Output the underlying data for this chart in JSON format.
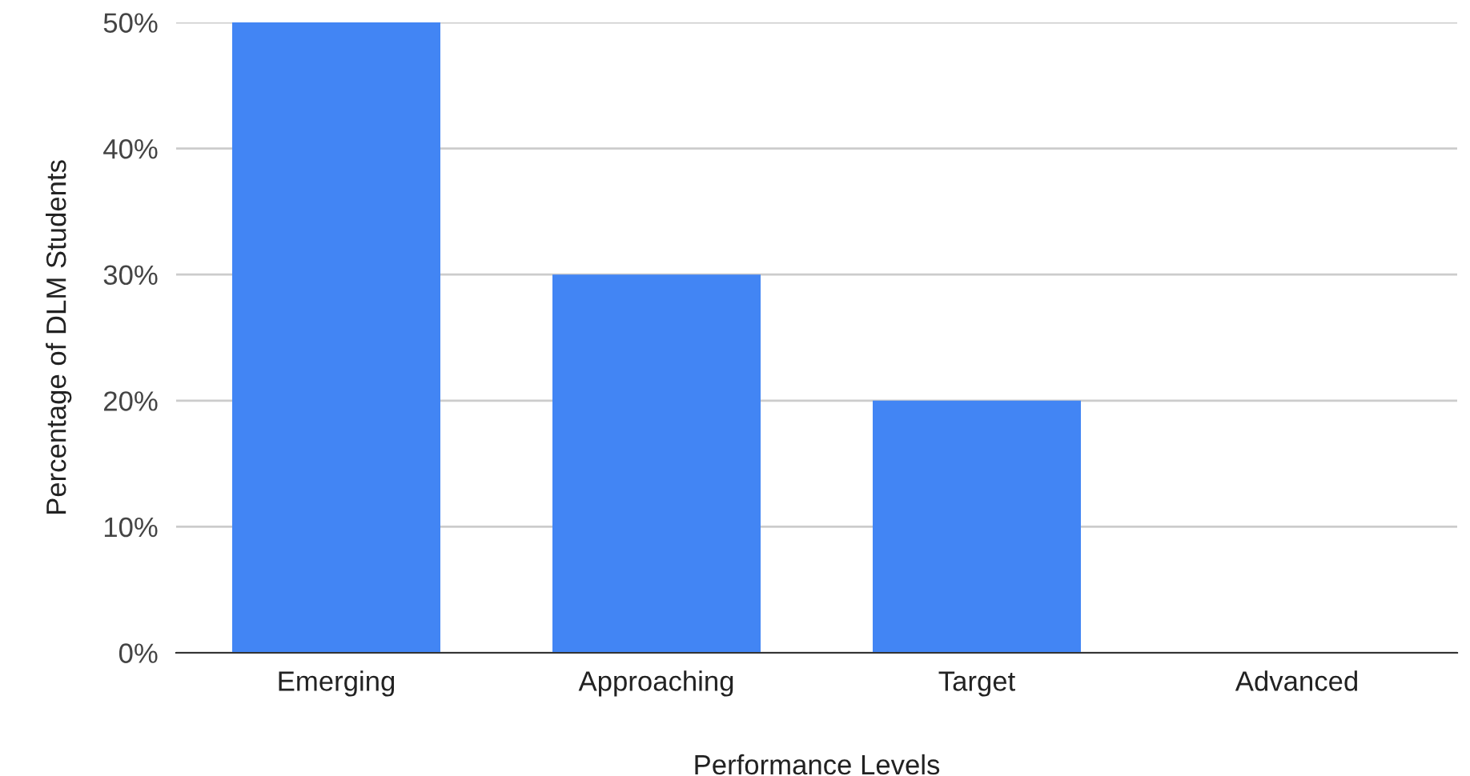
{
  "chart_data": {
    "type": "bar",
    "xlabel": "Performance Levels",
    "ylabel": "Percentage of DLM Students",
    "categories": [
      "Emerging",
      "Approaching",
      "Target",
      "Advanced"
    ],
    "values": [
      50,
      30,
      20,
      0
    ],
    "color": "#4285f4",
    "ylim": [
      0,
      50
    ],
    "yticks": [
      {
        "value": 0,
        "label": "0%"
      },
      {
        "value": 10,
        "label": "10%"
      },
      {
        "value": 20,
        "label": "20%"
      },
      {
        "value": 30,
        "label": "30%"
      },
      {
        "value": 40,
        "label": "40%"
      },
      {
        "value": 50,
        "label": "50%"
      }
    ],
    "grid": "y",
    "legend": false
  }
}
